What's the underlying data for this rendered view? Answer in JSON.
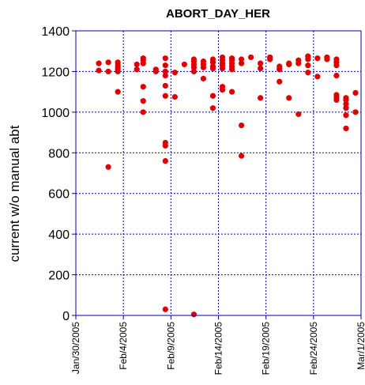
{
  "chart_data": {
    "type": "scatter",
    "title": "ABORT_DAY_HER",
    "xlabel": "",
    "ylabel": "current w/o manual abt",
    "xlim": [
      "2005-01-30",
      "2005-03-01"
    ],
    "ylim": [
      0,
      1400
    ],
    "grid": true,
    "marker_color": "#dd0000",
    "frame_color": "#0000b0",
    "y_ticks": [
      0,
      200,
      400,
      600,
      800,
      1000,
      1200,
      1400
    ],
    "x_ticks": [
      {
        "date": "2005-01-30",
        "label": "Jan/30/2005"
      },
      {
        "date": "2005-02-04",
        "label": "Feb/4/2005"
      },
      {
        "date": "2005-02-09",
        "label": "Feb/9/2005"
      },
      {
        "date": "2005-02-14",
        "label": "Feb/14/2005"
      },
      {
        "date": "2005-02-19",
        "label": "Feb/19/2005"
      },
      {
        "date": "2005-02-24",
        "label": "Feb/24/2005"
      },
      {
        "date": "2005-03-01",
        "label": "Mar/1/2005"
      }
    ],
    "points": [
      [
        "2005-02-01 10:00",
        1240
      ],
      [
        "2005-02-01 10:00",
        1205
      ],
      [
        "2005-02-02 10:00",
        1245
      ],
      [
        "2005-02-02 10:00",
        1200
      ],
      [
        "2005-02-02 10:00",
        730
      ],
      [
        "2005-02-03 10:00",
        1245
      ],
      [
        "2005-02-03 10:00",
        1230
      ],
      [
        "2005-02-03 10:00",
        1220
      ],
      [
        "2005-02-03 10:00",
        1210
      ],
      [
        "2005-02-03 10:00",
        1200
      ],
      [
        "2005-02-03 10:00",
        1100
      ],
      [
        "2005-02-05 10:00",
        1235
      ],
      [
        "2005-02-05 10:00",
        1210
      ],
      [
        "2005-02-06 02:00",
        1265
      ],
      [
        "2005-02-06 02:00",
        1255
      ],
      [
        "2005-02-06 02:00",
        1240
      ],
      [
        "2005-02-06 02:00",
        1125
      ],
      [
        "2005-02-06 02:00",
        1055
      ],
      [
        "2005-02-06 02:00",
        1000
      ],
      [
        "2005-02-07 10:00",
        1210
      ],
      [
        "2005-02-07 10:00",
        1200
      ],
      [
        "2005-02-08 10:00",
        1265
      ],
      [
        "2005-02-08 10:00",
        1230
      ],
      [
        "2005-02-08 10:00",
        1200
      ],
      [
        "2005-02-08 10:00",
        1180
      ],
      [
        "2005-02-08 10:00",
        1130
      ],
      [
        "2005-02-08 10:00",
        1080
      ],
      [
        "2005-02-08 10:00",
        850
      ],
      [
        "2005-02-08 10:00",
        835
      ],
      [
        "2005-02-08 10:00",
        760
      ],
      [
        "2005-02-08 10:00",
        30
      ],
      [
        "2005-02-09 10:00",
        1195
      ],
      [
        "2005-02-09 10:00",
        1075
      ],
      [
        "2005-02-10 10:00",
        1235
      ],
      [
        "2005-02-11 10:00",
        1260
      ],
      [
        "2005-02-11 10:00",
        1250
      ],
      [
        "2005-02-11 10:00",
        1235
      ],
      [
        "2005-02-11 10:00",
        1220
      ],
      [
        "2005-02-11 10:00",
        1200
      ],
      [
        "2005-02-11 10:00",
        5
      ],
      [
        "2005-02-12 10:00",
        1250
      ],
      [
        "2005-02-12 10:00",
        1235
      ],
      [
        "2005-02-12 10:00",
        1220
      ],
      [
        "2005-02-12 10:00",
        1165
      ],
      [
        "2005-02-13 10:00",
        1260
      ],
      [
        "2005-02-13 10:00",
        1245
      ],
      [
        "2005-02-13 10:00",
        1225
      ],
      [
        "2005-02-13 10:00",
        1215
      ],
      [
        "2005-02-13 10:00",
        1080
      ],
      [
        "2005-02-13 10:00",
        1020
      ],
      [
        "2005-02-14 10:00",
        1270
      ],
      [
        "2005-02-14 10:00",
        1255
      ],
      [
        "2005-02-14 10:00",
        1240
      ],
      [
        "2005-02-14 10:00",
        1230
      ],
      [
        "2005-02-14 10:00",
        1215
      ],
      [
        "2005-02-14 10:00",
        1125
      ],
      [
        "2005-02-14 10:00",
        1110
      ],
      [
        "2005-02-15 10:00",
        1265
      ],
      [
        "2005-02-15 10:00",
        1255
      ],
      [
        "2005-02-15 10:00",
        1240
      ],
      [
        "2005-02-15 10:00",
        1225
      ],
      [
        "2005-02-15 10:00",
        1210
      ],
      [
        "2005-02-15 10:00",
        1100
      ],
      [
        "2005-02-16 10:00",
        1260
      ],
      [
        "2005-02-16 10:00",
        1240
      ],
      [
        "2005-02-16 10:00",
        935
      ],
      [
        "2005-02-16 10:00",
        785
      ],
      [
        "2005-02-17 10:00",
        1270
      ],
      [
        "2005-02-18 10:00",
        1240
      ],
      [
        "2005-02-18 10:00",
        1215
      ],
      [
        "2005-02-18 10:00",
        1070
      ],
      [
        "2005-02-19 10:00",
        1270
      ],
      [
        "2005-02-19 10:00",
        1260
      ],
      [
        "2005-02-20 10:00",
        1225
      ],
      [
        "2005-02-20 10:00",
        1210
      ],
      [
        "2005-02-20 10:00",
        1150
      ],
      [
        "2005-02-21 10:00",
        1240
      ],
      [
        "2005-02-21 10:00",
        1235
      ],
      [
        "2005-02-21 10:00",
        1070
      ],
      [
        "2005-02-22 10:00",
        1255
      ],
      [
        "2005-02-22 10:00",
        1240
      ],
      [
        "2005-02-22 10:00",
        990
      ],
      [
        "2005-02-23 10:00",
        1275
      ],
      [
        "2005-02-23 10:00",
        1260
      ],
      [
        "2005-02-23 10:00",
        1230
      ],
      [
        "2005-02-23 10:00",
        1195
      ],
      [
        "2005-02-24 10:00",
        1265
      ],
      [
        "2005-02-24 10:00",
        1175
      ],
      [
        "2005-02-25 10:00",
        1270
      ],
      [
        "2005-02-25 10:00",
        1260
      ],
      [
        "2005-02-26 10:00",
        1260
      ],
      [
        "2005-02-26 10:00",
        1245
      ],
      [
        "2005-02-26 10:00",
        1230
      ],
      [
        "2005-02-26 10:00",
        1180
      ],
      [
        "2005-02-26 10:00",
        1085
      ],
      [
        "2005-02-26 10:00",
        1070
      ],
      [
        "2005-02-26 10:00",
        1060
      ],
      [
        "2005-02-27 10:00",
        1070
      ],
      [
        "2005-02-27 10:00",
        1060
      ],
      [
        "2005-02-27 10:00",
        1040
      ],
      [
        "2005-02-27 10:00",
        1020
      ],
      [
        "2005-02-27 10:00",
        985
      ],
      [
        "2005-02-27 10:00",
        920
      ],
      [
        "2005-02-28 10:00",
        1095
      ],
      [
        "2005-02-28 10:00",
        1000
      ]
    ]
  }
}
